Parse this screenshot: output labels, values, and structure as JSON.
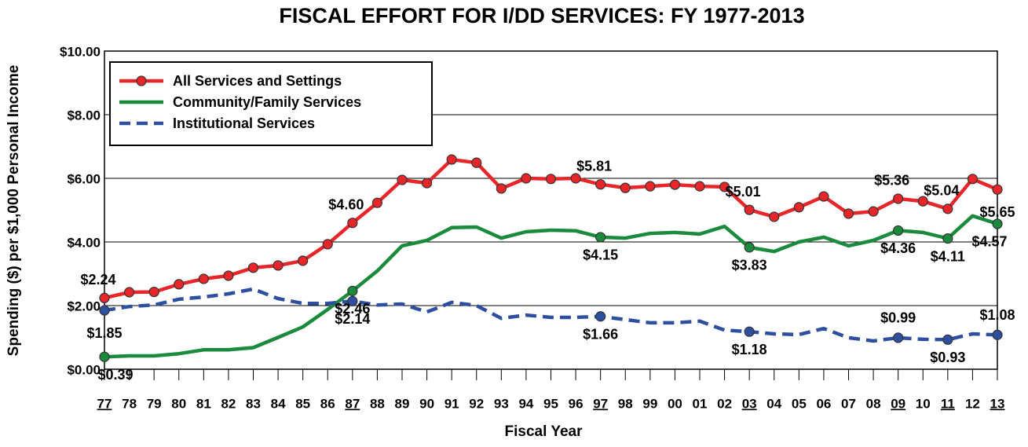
{
  "chart_data": {
    "type": "line",
    "title": "FISCAL EFFORT FOR I/DD SERVICES: FY 1977-2013",
    "x_label": "Fiscal Year",
    "y_label": "Spending ($) per $1,000 Personal Income",
    "categories": [
      "77",
      "78",
      "79",
      "80",
      "81",
      "82",
      "83",
      "84",
      "85",
      "86",
      "87",
      "88",
      "89",
      "90",
      "91",
      "92",
      "93",
      "94",
      "95",
      "96",
      "97",
      "98",
      "99",
      "00",
      "01",
      "02",
      "03",
      "04",
      "05",
      "06",
      "07",
      "08",
      "09",
      "10",
      "11",
      "12",
      "13"
    ],
    "ylim": [
      0,
      10
    ],
    "yticks": [
      {
        "value": 0,
        "label": "$0.00"
      },
      {
        "value": 2,
        "label": "$2.00"
      },
      {
        "value": 4,
        "label": "$4.00"
      },
      {
        "value": 6,
        "label": "$6.00"
      },
      {
        "value": 8,
        "label": "$8.00"
      },
      {
        "value": 10,
        "label": "$10.00"
      }
    ],
    "grid": true,
    "legend": "top-left",
    "series": [
      {
        "name": "All Services and Settings",
        "color": "#e8262a",
        "dash": "solid",
        "markers": "all",
        "values": [
          2.24,
          2.42,
          2.43,
          2.67,
          2.84,
          2.94,
          3.19,
          3.26,
          3.41,
          3.93,
          4.6,
          5.23,
          5.95,
          5.85,
          6.59,
          6.49,
          5.68,
          6.0,
          5.98,
          6.0,
          5.81,
          5.7,
          5.75,
          5.8,
          5.75,
          5.73,
          5.01,
          4.79,
          5.09,
          5.43,
          4.89,
          4.96,
          5.36,
          5.28,
          5.04,
          5.98,
          5.65
        ],
        "value_labels": [
          "$2.24",
          null,
          null,
          null,
          null,
          null,
          null,
          null,
          null,
          null,
          "$4.60",
          null,
          null,
          null,
          null,
          null,
          null,
          null,
          null,
          null,
          "$5.81",
          null,
          null,
          null,
          null,
          null,
          "$5.01",
          null,
          null,
          null,
          null,
          null,
          "$5.36",
          null,
          "$5.04",
          null,
          "$5.65"
        ]
      },
      {
        "name": "Community/Family Services",
        "color": "#1a8a3c",
        "dash": "solid",
        "markers": "labeled",
        "values": [
          0.39,
          0.42,
          0.42,
          0.49,
          0.61,
          0.61,
          0.68,
          1.0,
          1.33,
          1.88,
          2.46,
          3.09,
          3.88,
          4.05,
          4.45,
          4.47,
          4.12,
          4.32,
          4.37,
          4.35,
          4.15,
          4.12,
          4.27,
          4.3,
          4.25,
          4.49,
          3.83,
          3.7,
          4.0,
          4.15,
          3.88,
          4.05,
          4.36,
          4.3,
          4.11,
          4.82,
          4.57
        ],
        "value_labels": [
          "$0.39",
          null,
          null,
          null,
          null,
          null,
          null,
          null,
          null,
          null,
          "$2.46",
          null,
          null,
          null,
          null,
          null,
          null,
          null,
          null,
          null,
          "$4.15",
          null,
          null,
          null,
          null,
          null,
          "$3.83",
          null,
          null,
          null,
          null,
          null,
          "$4.36",
          null,
          "$4.11",
          null,
          "$4.57"
        ]
      },
      {
        "name": "Institutional Services",
        "color": "#2e4fa0",
        "dash": "dashed",
        "markers": "labeled",
        "values": [
          1.85,
          1.97,
          2.02,
          2.2,
          2.27,
          2.37,
          2.52,
          2.22,
          2.07,
          2.07,
          2.14,
          2.02,
          2.05,
          1.8,
          2.1,
          2.0,
          1.6,
          1.7,
          1.63,
          1.63,
          1.66,
          1.56,
          1.46,
          1.46,
          1.51,
          1.23,
          1.18,
          1.11,
          1.09,
          1.28,
          0.99,
          0.89,
          0.99,
          0.94,
          0.93,
          1.11,
          1.08
        ],
        "value_labels": [
          "$1.85",
          null,
          null,
          null,
          null,
          null,
          null,
          null,
          null,
          null,
          "$2.14",
          null,
          null,
          null,
          null,
          null,
          null,
          null,
          null,
          null,
          "$1.66",
          null,
          null,
          null,
          null,
          null,
          "$1.18",
          null,
          null,
          null,
          null,
          null,
          "$0.99",
          null,
          "$0.93",
          null,
          "$1.08"
        ]
      }
    ]
  }
}
